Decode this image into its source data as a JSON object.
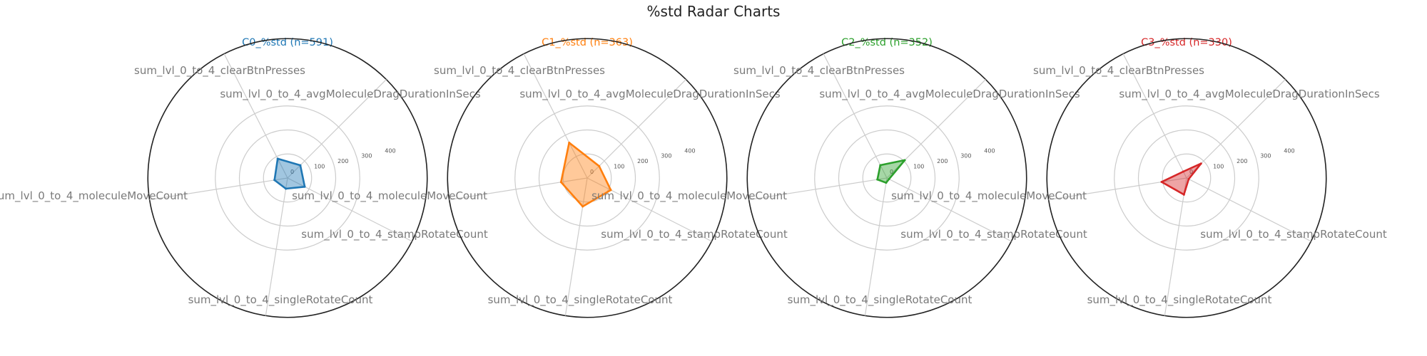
{
  "title": "%std Radar Charts",
  "chart_data": {
    "type": "radar",
    "axes": [
      "sum_lvl_0_to_4_avgMoleculeDragDurationInSecs",
      "sum_lvl_0_to_4_clearBtnPresses",
      "sum_lvl_0_to_4_moleculeMoveCount",
      "sum_lvl_0_to_4_singleRotateCount",
      "sum_lvl_0_to_4_stampRotateCount"
    ],
    "rticks": [
      0,
      100,
      200,
      300,
      400
    ],
    "rlim": [
      0,
      400
    ],
    "grid": true,
    "charts": [
      {
        "title": "C0_%std (n=591)",
        "color": "#1f77b4",
        "values": [
          75,
          90,
          55,
          45,
          80
        ]
      },
      {
        "title": "C1_%std (n=363)",
        "color": "#ff7f0e",
        "values": [
          70,
          165,
          110,
          120,
          110
        ]
      },
      {
        "title": "C2_%std (n=352)",
        "color": "#2ca02c",
        "values": [
          105,
          60,
          40,
          20,
          10
        ]
      },
      {
        "title": "C3_%std (n=330)",
        "color": "#d62728",
        "values": [
          85,
          30,
          105,
          70,
          10
        ]
      }
    ]
  }
}
